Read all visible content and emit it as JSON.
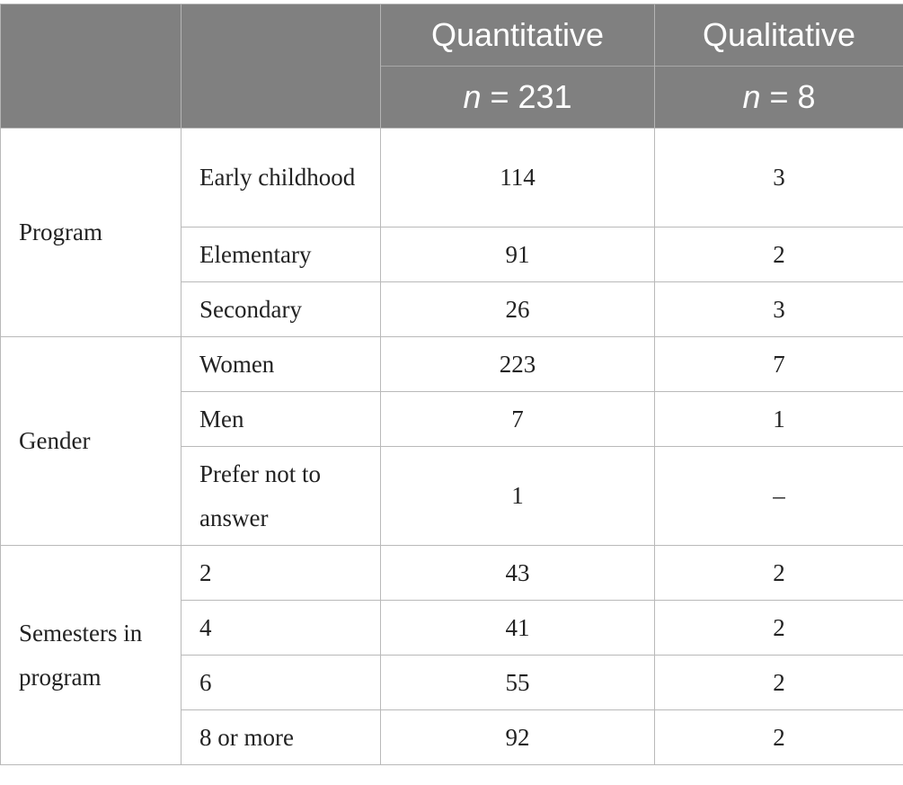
{
  "header": {
    "col_quant": "Quantitative",
    "col_qual": "Qualitative",
    "n_symbol": "n",
    "quant_n": " = 231",
    "qual_n": " = 8"
  },
  "groups": [
    {
      "label": "Program",
      "rows": [
        {
          "category": "Early childhood",
          "quantitative": "114",
          "qualitative": "3"
        },
        {
          "category": "Elementary",
          "quantitative": "91",
          "qualitative": "2"
        },
        {
          "category": "Secondary",
          "quantitative": "26",
          "qualitative": "3"
        }
      ]
    },
    {
      "label": "Gender",
      "rows": [
        {
          "category": "Women",
          "quantitative": "223",
          "qualitative": "7"
        },
        {
          "category": "Men",
          "quantitative": "7",
          "qualitative": "1"
        },
        {
          "category": "Prefer not to answer",
          "quantitative": "1",
          "qualitative": "–"
        }
      ]
    },
    {
      "label": "Semesters in program",
      "rows": [
        {
          "category": "2",
          "quantitative": "43",
          "qualitative": "2"
        },
        {
          "category": "4",
          "quantitative": "41",
          "qualitative": "2"
        },
        {
          "category": "6",
          "quantitative": "55",
          "qualitative": "2"
        },
        {
          "category": "8 or more",
          "quantitative": "92",
          "qualitative": "2"
        }
      ]
    }
  ]
}
